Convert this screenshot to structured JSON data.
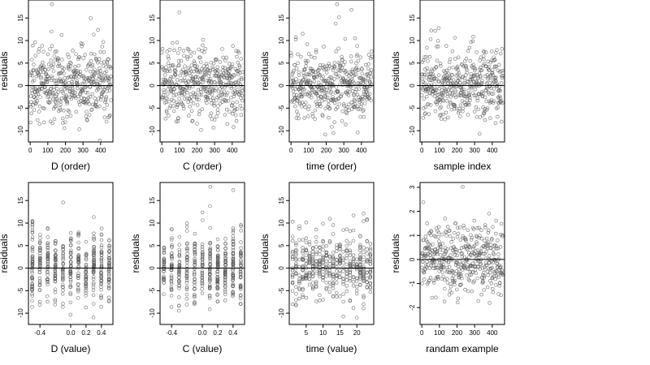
{
  "chart_data": [
    {
      "type": "scatter",
      "xlabel": "D (order)",
      "ylabel": "residuals",
      "xmode": "order",
      "xlim": [
        -10,
        470
      ],
      "xticks": [
        0,
        100,
        200,
        300,
        400
      ],
      "xtick_labels": [
        "0",
        "100",
        "200",
        "300",
        "400"
      ],
      "ylim": [
        -12.5,
        19
      ],
      "yticks": [
        -10,
        -5,
        0,
        5,
        10,
        15
      ],
      "ytick_labels": [
        "-10",
        "-5",
        "0",
        "5",
        "10",
        "15"
      ],
      "hline": 0,
      "grid": false,
      "n_points": 460,
      "seed": 11
    },
    {
      "type": "scatter",
      "xlabel": "C (order)",
      "ylabel": "residuals",
      "xmode": "order",
      "xlim": [
        -10,
        470
      ],
      "xticks": [
        0,
        100,
        200,
        300,
        400
      ],
      "xtick_labels": [
        "0",
        "100",
        "200",
        "300",
        "400"
      ],
      "ylim": [
        -12.5,
        19
      ],
      "yticks": [
        -10,
        -5,
        0,
        5,
        10,
        15
      ],
      "ytick_labels": [
        "-10",
        "-5",
        "0",
        "5",
        "10",
        "15"
      ],
      "hline": 0,
      "grid": false,
      "n_points": 460,
      "seed": 23
    },
    {
      "type": "scatter",
      "xlabel": "time (order)",
      "ylabel": "residuals",
      "xmode": "order",
      "xlim": [
        -10,
        470
      ],
      "xticks": [
        0,
        100,
        200,
        300,
        400
      ],
      "xtick_labels": [
        "0",
        "100",
        "200",
        "300",
        "400"
      ],
      "ylim": [
        -12.5,
        19
      ],
      "yticks": [
        -10,
        -5,
        0,
        5,
        10,
        15
      ],
      "ytick_labels": [
        "-10",
        "-5",
        "0",
        "5",
        "10",
        "15"
      ],
      "hline": 0,
      "grid": false,
      "n_points": 460,
      "seed": 37
    },
    {
      "type": "scatter",
      "xlabel": "sample index",
      "ylabel": "residuals",
      "xmode": "order",
      "xlim": [
        -10,
        470
      ],
      "xticks": [
        0,
        100,
        200,
        300,
        400
      ],
      "xtick_labels": [
        "0",
        "100",
        "200",
        "300",
        "400"
      ],
      "ylim": [
        -12.5,
        19
      ],
      "yticks": [
        -10,
        -5,
        0,
        5,
        10,
        15
      ],
      "ytick_labels": [
        "-10",
        "-5",
        "0",
        "5",
        "10",
        "15"
      ],
      "hline": 0,
      "grid": false,
      "n_points": 460,
      "seed": 41
    },
    {
      "type": "scatter",
      "xlabel": "D (value)",
      "ylabel": "residuals",
      "xmode": "value",
      "xlim": [
        -0.55,
        0.55
      ],
      "xticks": [
        -0.4,
        0,
        0.2,
        0.4
      ],
      "xtick_labels": [
        "-0.4",
        "0.0",
        "0.2",
        "0.4"
      ],
      "x_levels": [
        -0.5,
        -0.4,
        -0.3,
        -0.2,
        -0.1,
        0,
        0.1,
        0.2,
        0.3,
        0.4,
        0.5
      ],
      "ylim": [
        -12.5,
        19
      ],
      "yticks": [
        -10,
        -5,
        0,
        5,
        10,
        15
      ],
      "ytick_labels": [
        "-10",
        "-5",
        "0",
        "5",
        "10",
        "15"
      ],
      "hline": 0,
      "grid": false,
      "n_points": 460,
      "seed": 53
    },
    {
      "type": "scatter",
      "xlabel": "C (value)",
      "ylabel": "residuals",
      "xmode": "value",
      "xlim": [
        -0.55,
        0.55
      ],
      "xticks": [
        -0.4,
        0,
        0.2,
        0.4
      ],
      "xtick_labels": [
        "-0.4",
        "0.0",
        "0.2",
        "0.4"
      ],
      "x_levels": [
        -0.5,
        -0.4,
        -0.3,
        -0.2,
        -0.1,
        0,
        0.1,
        0.2,
        0.3,
        0.4,
        0.5
      ],
      "ylim": [
        -12.5,
        19
      ],
      "yticks": [
        -10,
        -5,
        0,
        5,
        10,
        15
      ],
      "ytick_labels": [
        "-10",
        "-5",
        "0",
        "5",
        "10",
        "15"
      ],
      "hline": 0,
      "grid": false,
      "n_points": 460,
      "seed": 67
    },
    {
      "type": "scatter",
      "xlabel": "time (value)",
      "ylabel": "residuals",
      "xmode": "value",
      "xlim": [
        0,
        25
      ],
      "xticks": [
        5,
        10,
        15,
        20
      ],
      "xtick_labels": [
        "5",
        "10",
        "15",
        "20"
      ],
      "x_levels": [
        1,
        2,
        3,
        4,
        5,
        6,
        7,
        8,
        9,
        10,
        11,
        12,
        13,
        14,
        15,
        16,
        17,
        18,
        19,
        20,
        21,
        22,
        23,
        24
      ],
      "ylim": [
        -12.5,
        19
      ],
      "yticks": [
        -10,
        -5,
        0,
        5,
        10,
        15
      ],
      "ytick_labels": [
        "-10",
        "-5",
        "0",
        "5",
        "10",
        "15"
      ],
      "hline": 0,
      "grid": false,
      "n_points": 460,
      "seed": 79
    },
    {
      "type": "scatter",
      "xlabel": "randam example",
      "ylabel": "residuals",
      "xmode": "order",
      "xlim": [
        -10,
        470
      ],
      "xticks": [
        0,
        100,
        200,
        300,
        400
      ],
      "xtick_labels": [
        "0",
        "100",
        "200",
        "300",
        "400"
      ],
      "ylim": [
        -2.7,
        3.2
      ],
      "yticks": [
        -2,
        -1,
        0,
        1,
        2,
        3
      ],
      "ytick_labels": [
        "-2",
        "-1",
        "0",
        "1",
        "2",
        "3"
      ],
      "hline": 0,
      "grid": false,
      "n_points": 460,
      "seed": 97
    }
  ]
}
